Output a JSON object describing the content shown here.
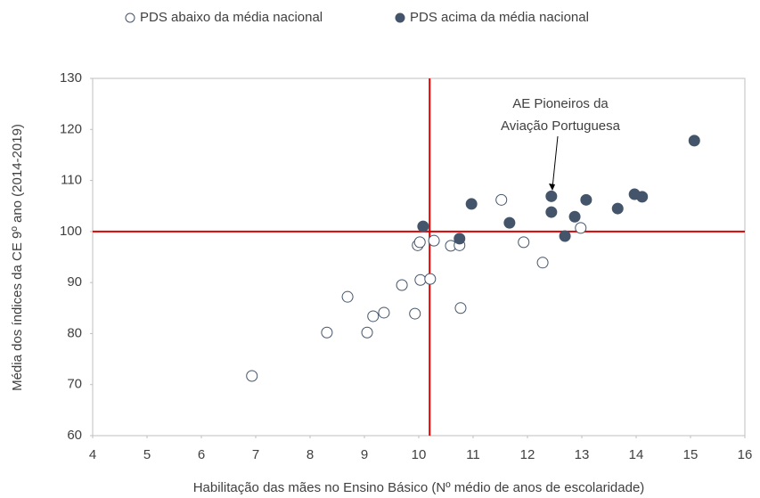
{
  "chart_data": {
    "type": "scatter",
    "xlabel": "Habilitação das mães no Ensino Básico (Nº médio de anos de escolaridade)",
    "ylabel": "Média dos índices da CE 9º ano (2014-2019)",
    "xlim": [
      4,
      16
    ],
    "xticks": [
      4,
      5,
      6,
      7,
      8,
      9,
      10,
      11,
      12,
      13,
      14,
      15,
      16
    ],
    "ylim": [
      60,
      130
    ],
    "yticks": [
      60,
      70,
      80,
      90,
      100,
      110,
      120,
      130
    ],
    "grid": false,
    "legend": "top",
    "reference_lines": {
      "x": 10.2,
      "y": 100,
      "color": "#e00000"
    },
    "annotation": [
      "AE Pioneiros da",
      "Aviação Portuguesa"
    ],
    "series": [
      {
        "name": "PDS abaixo da média nacional",
        "marker": "open",
        "color": "#44546a",
        "x": [
          6.93,
          8.31,
          8.69,
          9.05,
          9.16,
          9.36,
          9.69,
          9.93,
          9.98,
          10.02,
          10.03,
          10.21,
          10.28,
          10.59,
          10.75,
          10.77,
          11.52,
          11.93,
          12.28,
          12.98
        ],
        "values": [
          71.7,
          80.2,
          87.2,
          80.2,
          83.4,
          84.1,
          89.5,
          83.9,
          97.3,
          97.9,
          90.5,
          90.7,
          98.2,
          97.2,
          97.3,
          85.0,
          106.2,
          97.9,
          93.9,
          100.7
        ]
      },
      {
        "name": "PDS acima da média nacional",
        "marker": "filled",
        "color": "#44546a",
        "x": [
          10.08,
          10.75,
          10.97,
          11.67,
          12.44,
          12.44,
          12.69,
          12.87,
          13.08,
          13.66,
          13.97,
          14.11,
          15.07
        ],
        "values": [
          101.0,
          98.6,
          105.4,
          101.7,
          106.9,
          103.8,
          99.1,
          102.9,
          106.2,
          104.5,
          107.3,
          106.8,
          117.8
        ]
      }
    ]
  }
}
